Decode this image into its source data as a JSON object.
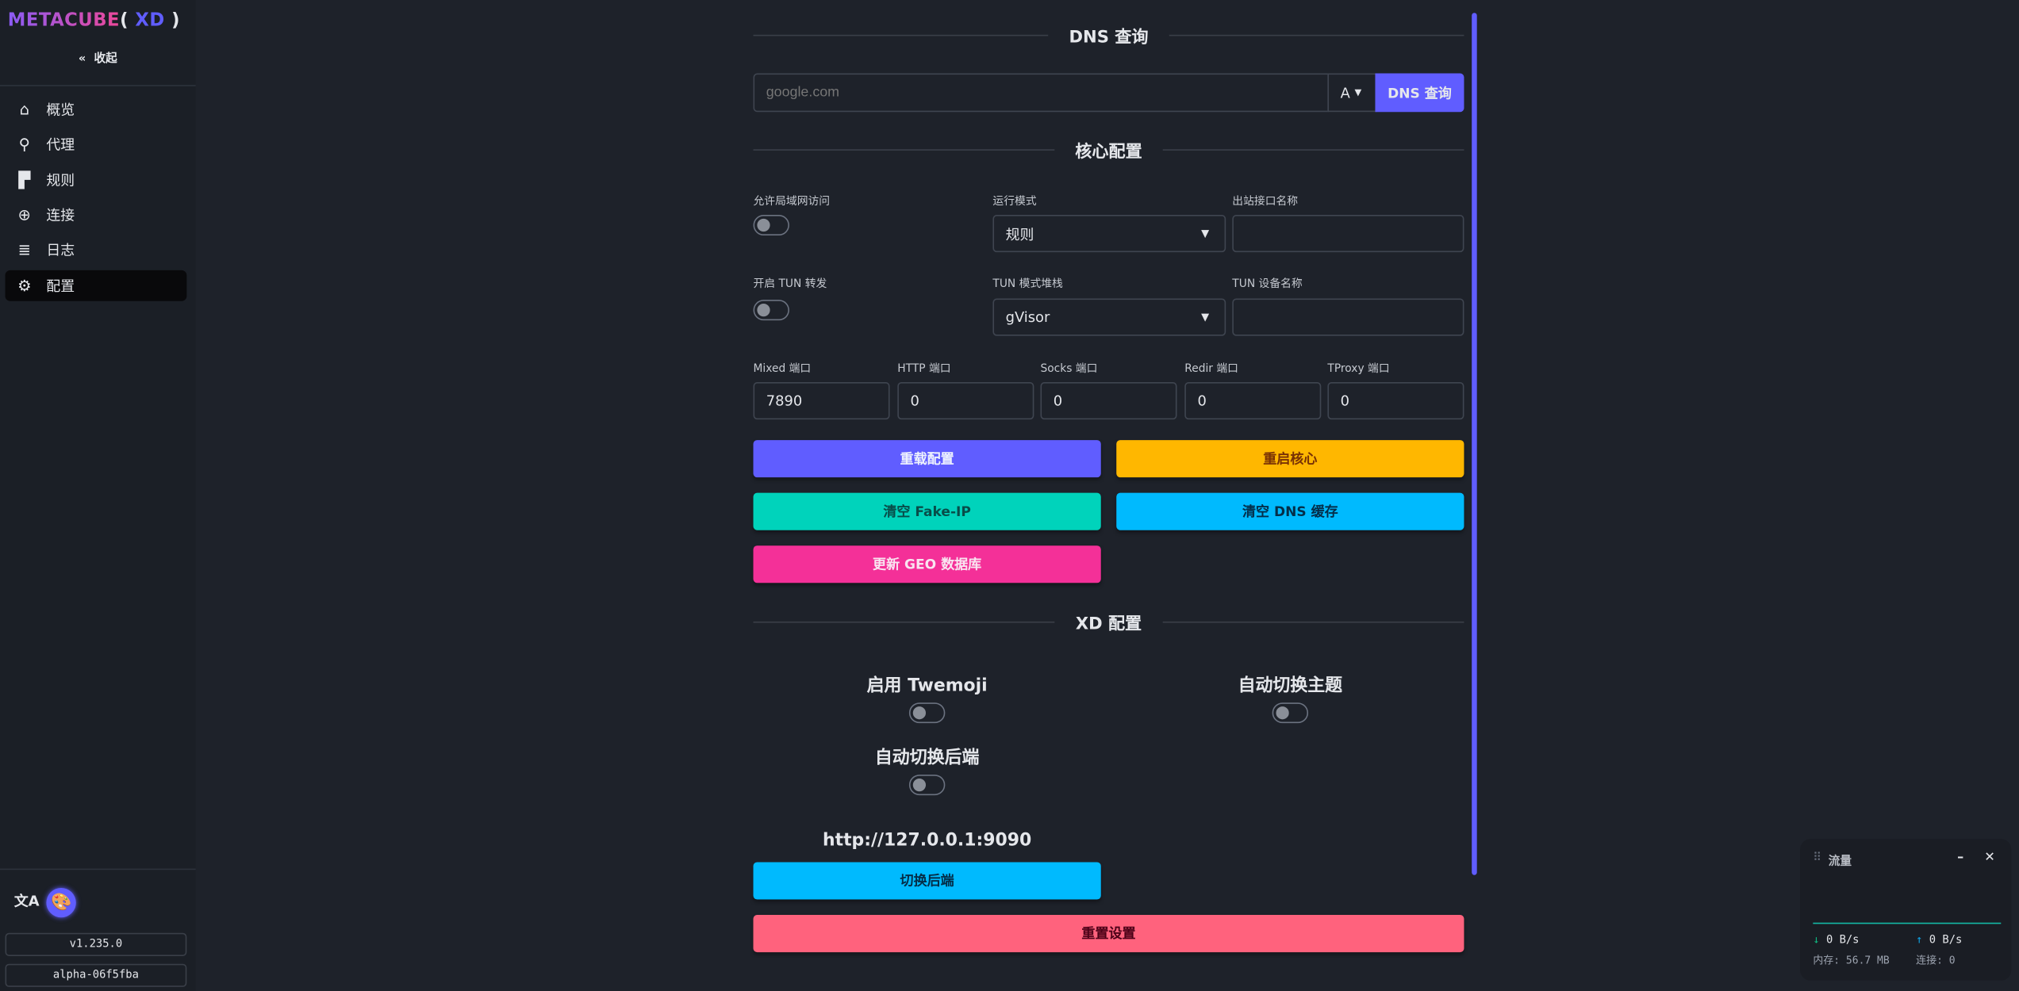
{
  "sidebar": {
    "logo_main": "METACUBE",
    "logo_paren_open": "(",
    "logo_xd": "XD",
    "logo_paren_close": ")",
    "collapse_label": "收起",
    "items": [
      {
        "label": "概览",
        "icon": "home-icon"
      },
      {
        "label": "代理",
        "icon": "globe-stand-icon"
      },
      {
        "label": "规则",
        "icon": "ruler-icon"
      },
      {
        "label": "连接",
        "icon": "network-icon"
      },
      {
        "label": "日志",
        "icon": "document-icon"
      },
      {
        "label": "配置",
        "icon": "gear-icon",
        "active": true
      }
    ],
    "version": "v1.235.0",
    "build": "alpha-06f5fba"
  },
  "dns": {
    "title": "DNS 查询",
    "placeholder": "google.com",
    "record_type": "A",
    "button": "DNS 查询"
  },
  "core": {
    "title": "核心配置",
    "allow_lan_label": "允许局域网访问",
    "allow_lan": false,
    "mode_label": "运行模式",
    "mode": "规则",
    "iface_label": "出站接口名称",
    "iface": "",
    "tun_label": "开启 TUN 转发",
    "tun": false,
    "tun_stack_label": "TUN 模式堆栈",
    "tun_stack": "gVisor",
    "tun_device_label": "TUN 设备名称",
    "tun_device": "",
    "ports": [
      {
        "label": "Mixed 端口",
        "value": "7890"
      },
      {
        "label": "HTTP 端口",
        "value": "0"
      },
      {
        "label": "Socks 端口",
        "value": "0"
      },
      {
        "label": "Redir 端口",
        "value": "0"
      },
      {
        "label": "TProxy 端口",
        "value": "0"
      }
    ],
    "buttons": {
      "reload": "重载配置",
      "restart": "重启核心",
      "flush_fakeip": "清空 Fake-IP",
      "flush_dns": "清空 DNS 缓存",
      "update_geo": "更新 GEO 数据库"
    }
  },
  "xd": {
    "title": "XD 配置",
    "twemoji_label": "启用 Twemoji",
    "twemoji": false,
    "auto_theme_label": "自动切换主题",
    "auto_theme": false,
    "auto_backend_label": "自动切换后端",
    "auto_backend": false,
    "backend_url": "http://127.0.0.1:9090",
    "switch_backend": "切换后端",
    "reset": "重置设置"
  },
  "traffic": {
    "title": "流量",
    "download": "0 B/s",
    "upload": "0 B/s",
    "memory": "内存: 56.7 MB",
    "connections": "连接: 0"
  },
  "colors": {
    "primary": "#605dff",
    "warning": "#ffb700",
    "success": "#00d3bb",
    "info": "#00bafe",
    "secondary": "#f43098",
    "error": "#ff627d"
  }
}
